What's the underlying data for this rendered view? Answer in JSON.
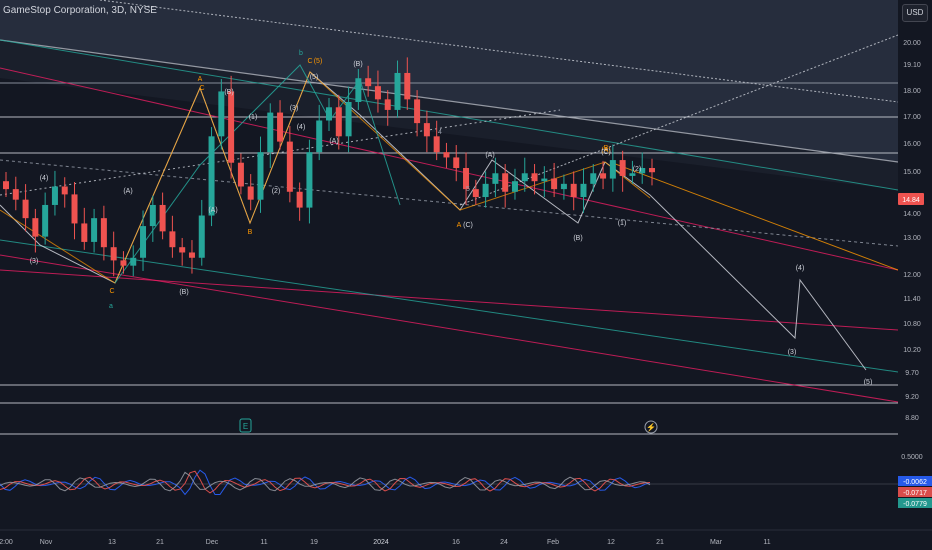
{
  "header": {
    "title": "GameStop Corporation, 3D, NYSE",
    "currency": "USD"
  },
  "chart_data": {
    "type": "candlestick",
    "symbol": "GameStop Corporation",
    "interval": "3D",
    "exchange": "NYSE",
    "last_price": "14.84",
    "price_axis": [
      "20.00",
      "19.10",
      "18.00",
      "17.00",
      "16.00",
      "15.00",
      "14.00",
      "13.00",
      "12.00",
      "11.40",
      "10.80",
      "10.20",
      "9.70",
      "9.20",
      "8.80"
    ],
    "time_axis": [
      "2:00",
      "Nov",
      "13",
      "21",
      "Dec",
      "11",
      "19",
      "2024",
      "16",
      "24",
      "Feb",
      "12",
      "21",
      "Mar",
      "11"
    ],
    "oscillator_axis": [
      "0.5000"
    ],
    "oscillator_values": [
      "-0.0062",
      "-0.0717",
      "-0.0779"
    ],
    "wave_labels": [
      "(4)",
      "(3)",
      "(A)",
      "C",
      "(B)",
      "a",
      "A",
      "C",
      "(B)",
      "(A)",
      "(1)",
      "(2)",
      "B",
      "(4)",
      "(3)",
      "b",
      "C",
      "(5)",
      "(5)",
      "(A)",
      "(B)",
      "(A)",
      "A",
      "(C)",
      "(A)",
      "(B)",
      "B",
      "(C)",
      "(1)",
      "(2)",
      "(4)",
      "(3)",
      "(5)",
      "4",
      "5"
    ],
    "series_close": [
      14.2,
      13.8,
      13.1,
      12.4,
      13.6,
      14.3,
      14.0,
      12.9,
      12.2,
      13.1,
      12.0,
      11.5,
      11.3,
      11.6,
      12.8,
      13.6,
      12.6,
      12.0,
      11.8,
      11.6,
      13.2,
      16.2,
      17.9,
      15.2,
      14.3,
      13.8,
      15.6,
      17.1,
      16.0,
      14.1,
      13.5,
      15.6,
      16.8,
      17.3,
      16.2,
      17.5,
      18.4,
      18.1,
      17.6,
      17.2,
      18.6,
      17.6,
      16.7,
      16.2,
      15.6,
      15.4,
      15.0,
      14.2,
      13.9,
      14.4,
      14.8,
      14.1,
      14.5,
      14.8,
      14.5,
      14.6,
      14.2,
      14.4,
      13.9,
      14.4,
      14.8,
      14.6,
      15.3,
      14.7,
      14.8,
      15.0,
      14.84
    ]
  },
  "markers": {
    "earnings": "E",
    "event": "⚡"
  }
}
